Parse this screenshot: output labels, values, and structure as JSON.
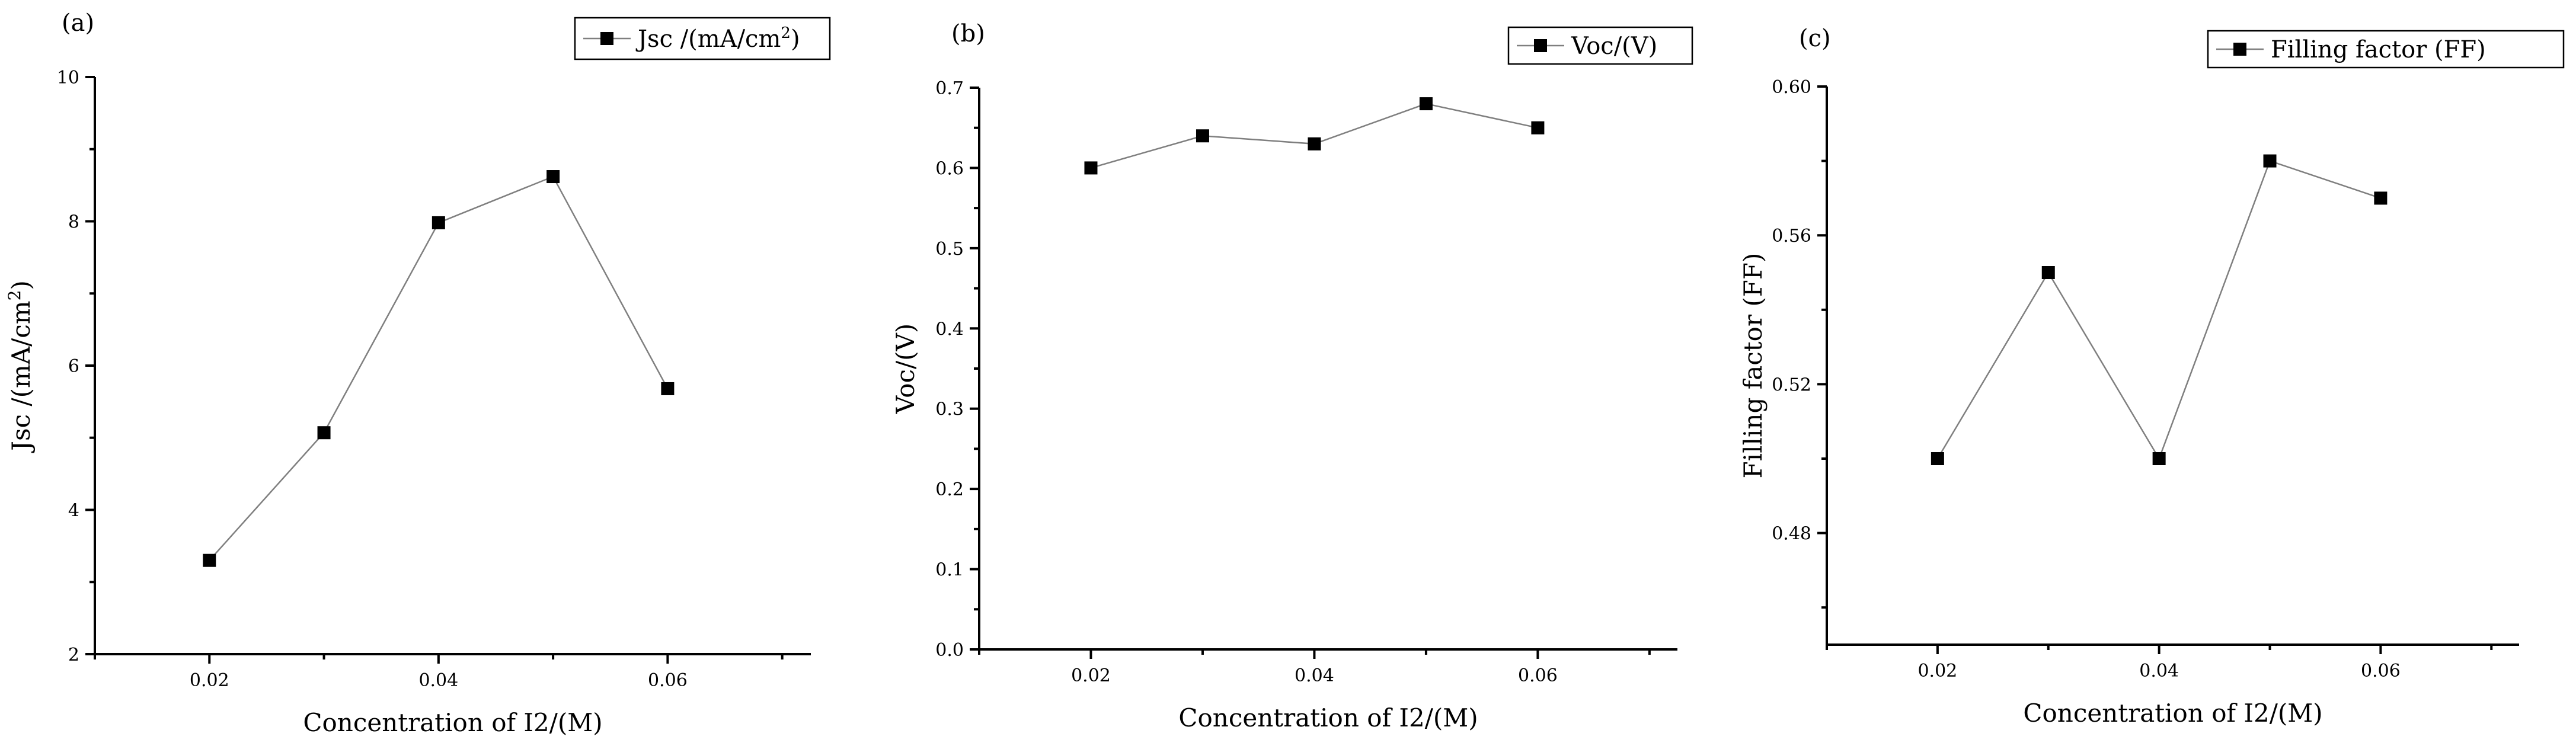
{
  "chart_data": [
    {
      "type": "line",
      "panel_label": "(a)",
      "legend": "Jsc /(mA/cm2)",
      "legend_placement": "top-right",
      "xlabel": "Concentration of I2/(M)",
      "ylabel": "Jsc /(mA/cm2)",
      "x": [
        0.02,
        0.03,
        0.04,
        0.05,
        0.06
      ],
      "y": [
        3.3,
        5.07,
        7.98,
        8.62,
        5.68
      ],
      "xlim": [
        0.01,
        0.0725
      ],
      "ylim": [
        2,
        10
      ],
      "xticks": [
        0.02,
        0.04,
        0.06
      ],
      "xtick_labels": [
        "0.02",
        "0.04",
        "0.06"
      ],
      "yticks": [
        2,
        4,
        6,
        8,
        10
      ],
      "ytick_labels": [
        "2",
        "4",
        "6",
        "8",
        "10"
      ],
      "y_minor_step": 1,
      "marker": "square",
      "line_color": "#7f7f7f",
      "marker_color": "#000000"
    },
    {
      "type": "line",
      "panel_label": "(b)",
      "legend": "Voc/(V)",
      "legend_placement": "top-right",
      "xlabel": "Concentration of I2/(M)",
      "ylabel": "Voc/(V)",
      "x": [
        0.02,
        0.03,
        0.04,
        0.05,
        0.06
      ],
      "y": [
        0.6,
        0.64,
        0.63,
        0.68,
        0.65
      ],
      "xlim": [
        0.01,
        0.0725
      ],
      "ylim": [
        0,
        0.7
      ],
      "xticks": [
        0.02,
        0.04,
        0.06
      ],
      "xtick_labels": [
        "0.02",
        "0.04",
        "0.06"
      ],
      "yticks": [
        0,
        0.1,
        0.2,
        0.3,
        0.4,
        0.5,
        0.6,
        0.7
      ],
      "ytick_labels": [
        "0.0",
        "0.1",
        "0.2",
        "0.3",
        "0.4",
        "0.5",
        "0.6",
        "0.7"
      ],
      "y_minor_step": 0.05,
      "marker": "square",
      "line_color": "#7f7f7f",
      "marker_color": "#000000"
    },
    {
      "type": "line",
      "panel_label": "(c)",
      "legend": "Filling factor (FF)",
      "legend_placement": "top-right",
      "xlabel": "Concentration of I2/(M)",
      "ylabel": "Filling factor (FF)",
      "x": [
        0.02,
        0.03,
        0.04,
        0.05,
        0.06
      ],
      "y": [
        0.5,
        0.55,
        0.5,
        0.58,
        0.57
      ],
      "xlim": [
        0.01,
        0.0725
      ],
      "ylim": [
        0.45,
        0.6
      ],
      "xticks": [
        0.02,
        0.04,
        0.06
      ],
      "xtick_labels": [
        "0.02",
        "0.04",
        "0.06"
      ],
      "yticks": [
        0.48,
        0.52,
        0.56,
        0.6
      ],
      "ytick_labels": [
        "0.48",
        "0.52",
        "0.56",
        "0.60"
      ],
      "y_minor_step": 0.02,
      "marker": "square",
      "line_color": "#7f7f7f",
      "marker_color": "#000000"
    }
  ]
}
